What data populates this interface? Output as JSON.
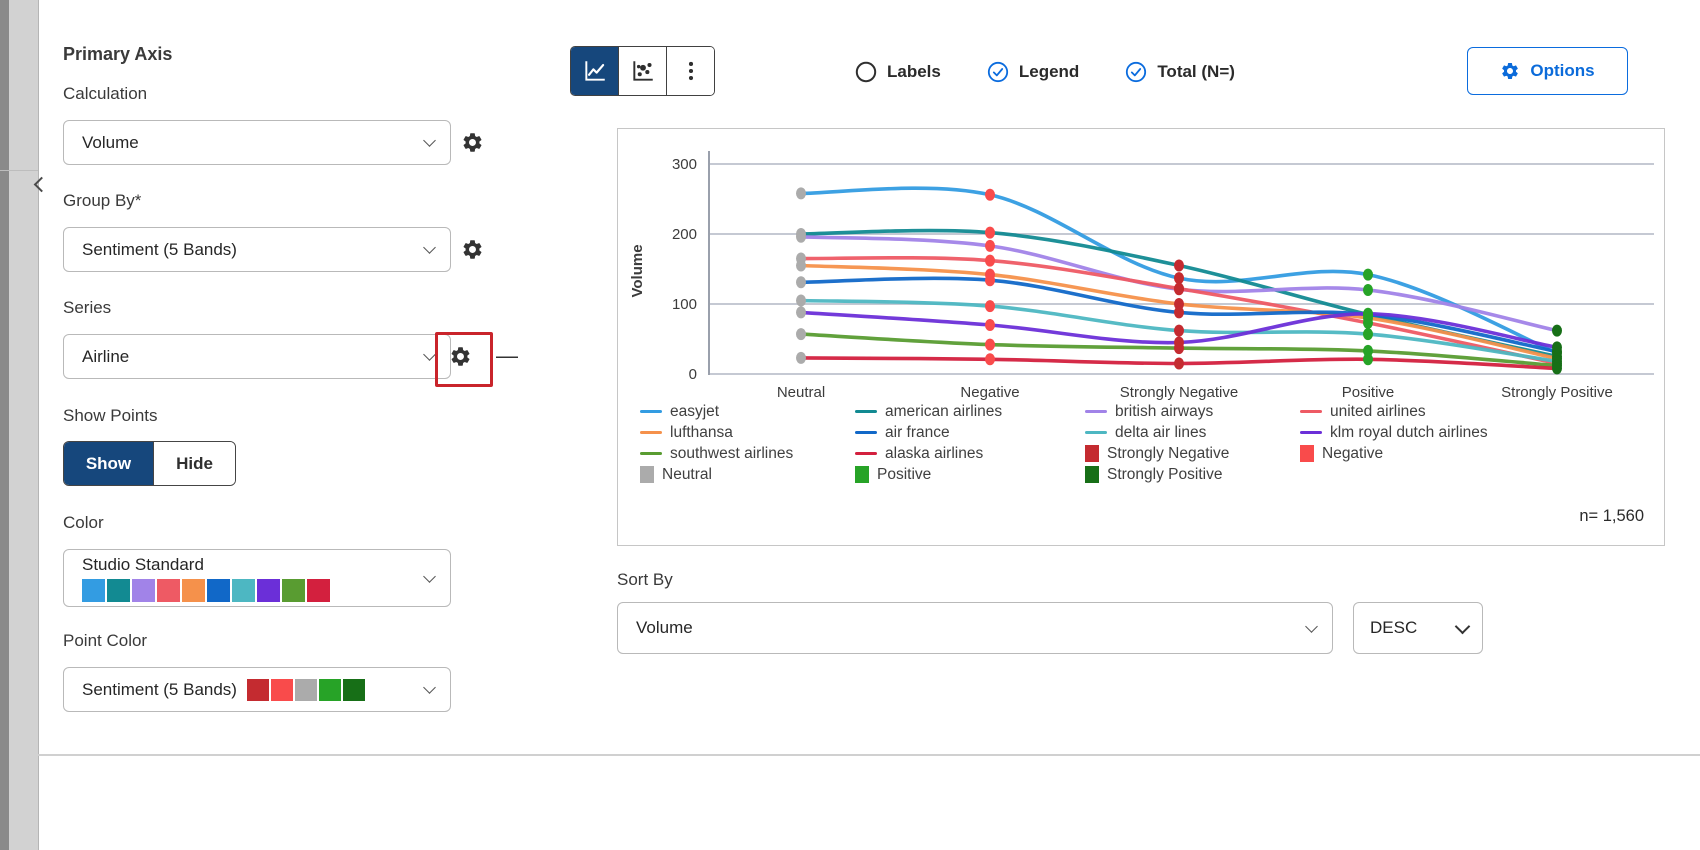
{
  "colors": {
    "brand_navy": "#16477c",
    "brand_blue": "#0b6bda",
    "annotation_red": "#c9242b",
    "grid_line": "#c5c9d3",
    "axis_line": "#9aa0ac"
  },
  "left_panel": {
    "title": "Primary Axis",
    "calculation": {
      "label": "Calculation",
      "value": "Volume"
    },
    "group_by": {
      "label": "Group By*",
      "value": "Sentiment (5 Bands)"
    },
    "series": {
      "label": "Series",
      "value": "Airline"
    },
    "show_points": {
      "label": "Show Points",
      "options": [
        {
          "label": "Show",
          "selected": true
        },
        {
          "label": "Hide",
          "selected": false
        }
      ]
    },
    "color": {
      "label": "Color",
      "value": "Studio Standard",
      "palette": [
        "#339ce2",
        "#128a92",
        "#a183e8",
        "#ee5a64",
        "#f5914b",
        "#1168c8",
        "#4db7c2",
        "#6b2fd8",
        "#599c31",
        "#d3203e"
      ]
    },
    "point_color": {
      "label": "Point Color",
      "value": "Sentiment (5 Bands)",
      "palette": [
        "#c42b30",
        "#f94b4b",
        "#ababab",
        "#27a327",
        "#176f17"
      ]
    }
  },
  "toolbar": {
    "chart_types": [
      {
        "name": "line-chart",
        "selected": true
      },
      {
        "name": "scatter-chart",
        "selected": false
      },
      {
        "name": "more-menu",
        "selected": false
      }
    ],
    "toggles": [
      {
        "label": "Labels",
        "checked": false
      },
      {
        "label": "Legend",
        "checked": true
      },
      {
        "label": "Total (N=)",
        "checked": true
      }
    ],
    "options_label": "Options"
  },
  "chart_data": {
    "type": "line",
    "title": "",
    "ylabel": "Volume",
    "xlabel": "",
    "ylim": [
      0,
      300
    ],
    "yticks": [
      0,
      100,
      200,
      300
    ],
    "grid": true,
    "legend_position": "bottom",
    "categories": [
      "Neutral",
      "Negative",
      "Strongly Negative",
      "Positive",
      "Strongly Positive"
    ],
    "point_colors_by_category": [
      "#ababab",
      "#f94b4b",
      "#c42b30",
      "#27a327",
      "#176f17"
    ],
    "series": [
      {
        "name": "easyjet",
        "color": "#339ce2",
        "values": [
          258,
          256,
          137,
          142,
          30
        ]
      },
      {
        "name": "american airlines",
        "color": "#128a92",
        "values": [
          200,
          202,
          155,
          85,
          25
        ]
      },
      {
        "name": "british airways",
        "color": "#a183e8",
        "values": [
          196,
          183,
          121,
          120,
          62
        ]
      },
      {
        "name": "united airlines",
        "color": "#ee5a64",
        "values": [
          165,
          162,
          122,
          73,
          15
        ]
      },
      {
        "name": "lufthansa",
        "color": "#f5914b",
        "values": [
          155,
          142,
          100,
          80,
          22
        ]
      },
      {
        "name": "air france",
        "color": "#1168c8",
        "values": [
          131,
          134,
          88,
          85,
          32
        ]
      },
      {
        "name": "delta air lines",
        "color": "#4db7c2",
        "values": [
          105,
          97,
          62,
          57,
          18
        ]
      },
      {
        "name": "klm royal dutch airlines",
        "color": "#6b2fd8",
        "values": [
          88,
          70,
          45,
          86,
          38
        ]
      },
      {
        "name": "southwest airlines",
        "color": "#599c31",
        "values": [
          57,
          42,
          37,
          33,
          12
        ]
      },
      {
        "name": "alaska airlines",
        "color": "#d3203e",
        "values": [
          23,
          21,
          15,
          21,
          8
        ]
      }
    ],
    "legend": [
      {
        "label": "easyjet",
        "swatch": "line",
        "color": "#339ce2"
      },
      {
        "label": "american airlines",
        "swatch": "line",
        "color": "#128a92"
      },
      {
        "label": "british airways",
        "swatch": "line",
        "color": "#a183e8"
      },
      {
        "label": "united airlines",
        "swatch": "line",
        "color": "#ee5a64"
      },
      {
        "label": "lufthansa",
        "swatch": "line",
        "color": "#f5914b"
      },
      {
        "label": "air france",
        "swatch": "line",
        "color": "#1168c8"
      },
      {
        "label": "delta air lines",
        "swatch": "line",
        "color": "#4db7c2"
      },
      {
        "label": "klm royal dutch airlines",
        "swatch": "line",
        "color": "#6b2fd8"
      },
      {
        "label": "southwest airlines",
        "swatch": "line",
        "color": "#599c31"
      },
      {
        "label": "alaska airlines",
        "swatch": "line",
        "color": "#d3203e"
      },
      {
        "label": "Strongly Negative",
        "swatch": "square",
        "color": "#c42b30"
      },
      {
        "label": "Negative",
        "swatch": "square",
        "color": "#f94b4b"
      },
      {
        "label": "Neutral",
        "swatch": "square",
        "color": "#ababab"
      },
      {
        "label": "Positive",
        "swatch": "square",
        "color": "#27a327"
      },
      {
        "label": "Strongly Positive",
        "swatch": "square",
        "color": "#176f17"
      }
    ],
    "total_label": "n= 1,560"
  },
  "sort_by": {
    "label": "Sort By",
    "value": "Volume",
    "direction": "DESC"
  }
}
